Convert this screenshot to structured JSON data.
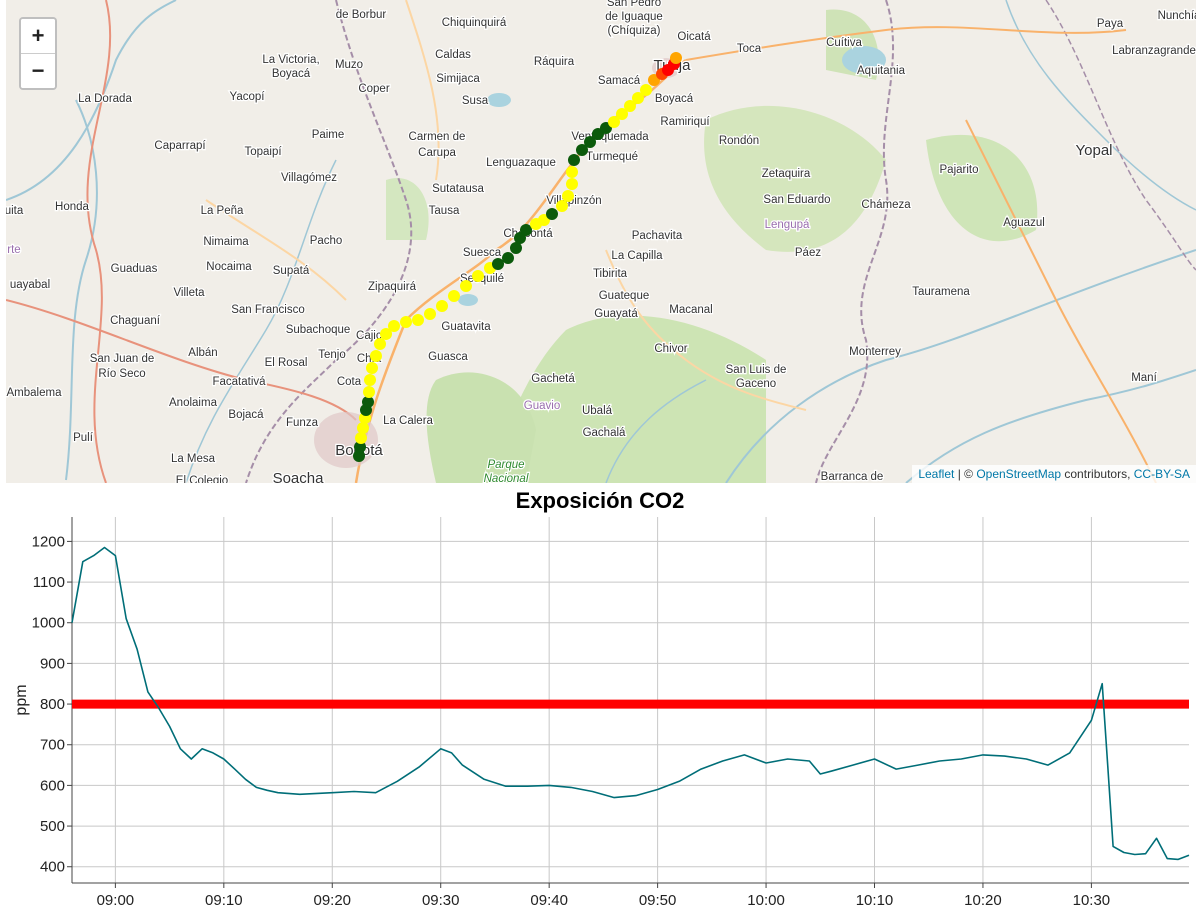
{
  "map": {
    "zoom_in_label": "+",
    "zoom_out_label": "−",
    "attribution": {
      "leaflet": "Leaflet",
      "separator": " | © ",
      "osm": "OpenStreetMap",
      "contributors": " contributors, ",
      "license": "CC-BY-SA"
    },
    "labels": [
      "de Borbur",
      "Chiquinquirá",
      "San Pedro",
      "de Iguaque",
      "(Chíquiza)",
      "Oicatá",
      "Toca",
      "Cuítiva",
      "Paya",
      "Nunchía",
      "La Victoria,",
      "Boyacá",
      "Muzo",
      "Caldas",
      "Ráquira",
      "Tunja",
      "Aquitania",
      "Labranzagrande",
      "La Dorada",
      "Yacopí",
      "Simijaca",
      "Susa",
      "Samacá",
      "Boyacá",
      "Coper",
      "Ramiriquí",
      "Paime",
      "Carmen de",
      "Carupa",
      "Ventaquemada",
      "Rondón",
      "Yopal",
      "Caparrapí",
      "Topaipí",
      "Lenguazaque",
      "Turmequé",
      "Villagómez",
      "Zetaquira",
      "Pajarito",
      "Sutatausa",
      "Honda",
      "La Peña",
      "Tausa",
      "Villapinzón",
      "San Eduardo",
      "Chámeza",
      "uita",
      "Nimaima",
      "Pacho",
      "Chocontá",
      "Lengupá",
      "Aguazul",
      "Pachavita",
      "Suesca",
      "rte",
      "Guaduas",
      "Nocaima",
      "Supatá",
      "La Capilla",
      "Páez",
      "Sesquilé",
      "Tibirita",
      "uayabal",
      "Villeta",
      "Zipaquirá",
      "Guateque",
      "Tauramena",
      "San Francisco",
      "Macanal",
      "Chaguaní",
      "Subachoque",
      "Guayatá",
      "Cajicá",
      "Guatavita",
      "San Juan de",
      "Río Seco",
      "Albán",
      "El Rosal",
      "Tenjo",
      "Chía",
      "Guasca",
      "Chivor",
      "Monterrey",
      "San Luis de",
      "Gaceno",
      "Ambalema",
      "Facatativá",
      "Cota",
      "Gachetá",
      "Maní",
      "Anolaima",
      "Guavio",
      "Ubalá",
      "Bojacá",
      "Funza",
      "La Calera",
      "Pulí",
      "Gachalá",
      "La Mesa",
      "Bogotá",
      "Parque",
      "Nacional",
      "El Colegio",
      "Soacha",
      "Barranca de"
    ]
  },
  "chart_data": {
    "type": "line",
    "title": "Exposición CO2",
    "xlabel": "",
    "ylabel": "ppm",
    "x_ticks": [
      "09:00",
      "09:10",
      "09:20",
      "09:30",
      "09:40",
      "09:50",
      "10:00",
      "10:10",
      "10:20",
      "10:30"
    ],
    "y_ticks": [
      400,
      500,
      600,
      700,
      800,
      900,
      1000,
      1100,
      1200
    ],
    "xlim": [
      "08:56",
      "10:39"
    ],
    "ylim": [
      360,
      1260
    ],
    "grid": true,
    "threshold": {
      "value": 800,
      "color": "#ff0000"
    },
    "line_color": "#006e78",
    "series": [
      {
        "x": [
          "08:56",
          "08:57",
          "08:58",
          "08:59",
          "09:00",
          "09:01",
          "09:02",
          "09:03",
          "09:04",
          "09:05",
          "09:06",
          "09:07",
          "09:08",
          "09:09",
          "09:10",
          "09:11",
          "09:12",
          "09:13",
          "09:14",
          "09:15",
          "09:17",
          "09:20",
          "09:22",
          "09:24",
          "09:26",
          "09:28",
          "09:30",
          "09:31",
          "09:32",
          "09:34",
          "09:36",
          "09:38",
          "09:40",
          "09:42",
          "09:44",
          "09:46",
          "09:48",
          "09:50",
          "09:52",
          "09:54",
          "09:56",
          "09:58",
          "10:00",
          "10:02",
          "10:04",
          "10:05",
          "10:06",
          "10:08",
          "10:10",
          "10:12",
          "10:14",
          "10:16",
          "10:18",
          "10:20",
          "10:22",
          "10:24",
          "10:26",
          "10:28",
          "10:29",
          "10:30",
          "10:31",
          "10:31:30",
          "10:32",
          "10:33",
          "10:34",
          "10:35",
          "10:36",
          "10:37",
          "10:38",
          "10:39"
        ],
        "y": [
          1000,
          1150,
          1165,
          1185,
          1165,
          1010,
          935,
          830,
          790,
          745,
          690,
          665,
          690,
          680,
          665,
          640,
          615,
          595,
          588,
          582,
          578,
          582,
          585,
          582,
          610,
          645,
          690,
          680,
          650,
          615,
          598,
          598,
          600,
          595,
          585,
          570,
          575,
          590,
          610,
          640,
          660,
          675,
          655,
          665,
          660,
          628,
          635,
          650,
          665,
          640,
          650,
          660,
          665,
          675,
          672,
          665,
          650,
          680,
          720,
          760,
          850,
          650,
          450,
          435,
          430,
          432,
          470,
          420,
          418,
          428
        ]
      }
    ]
  }
}
